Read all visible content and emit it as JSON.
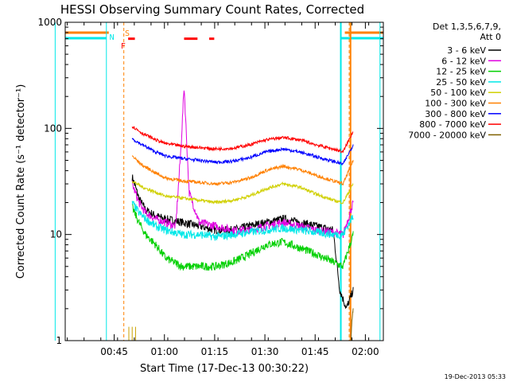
{
  "chart_data": {
    "type": "line",
    "title": "HESSI Observing Summary Count Rates, Corrected",
    "xlabel": "Start Time (17-Dec-13 00:30:22)",
    "ylabel": "Corrected Count Rate (s⁻¹ detector⁻¹)",
    "yscale": "log",
    "ylim": [
      1,
      1000
    ],
    "xlim_minutes": [
      0,
      95
    ],
    "x_ticks": [
      "00:45",
      "01:00",
      "01:15",
      "01:30",
      "01:45",
      "02:00"
    ],
    "x_tick_minutes": [
      14.63,
      29.63,
      44.63,
      59.63,
      74.63,
      89.63
    ],
    "y_ticks": [
      "1",
      "10",
      "100",
      "1000"
    ],
    "y_tick_values": [
      1,
      10,
      100,
      1000
    ],
    "timestamp": "19-Dec-2013 05:33",
    "legend": {
      "header": [
        "Det 1,3,5,6,7,9,",
        "Att 0"
      ],
      "position": "right"
    },
    "flag_labels": [
      "S",
      "N",
      "F"
    ],
    "series": [
      {
        "name": "3 - 6 keV",
        "color": "#000000",
        "x": [
          20,
          22,
          24,
          27,
          30,
          35,
          40,
          45,
          50,
          55,
          60,
          65,
          70,
          75,
          80,
          82,
          84,
          86
        ],
        "y": [
          35,
          22,
          17,
          15,
          14,
          13,
          12,
          11,
          11,
          12,
          13,
          14,
          13,
          12,
          11,
          3,
          2,
          3
        ]
      },
      {
        "name": "6 - 12 keV",
        "color": "#e000e0",
        "x": [
          20,
          22,
          24,
          27,
          30,
          33,
          34.5,
          35.5,
          37,
          40,
          45,
          50,
          55,
          60,
          65,
          70,
          75,
          80,
          83,
          86
        ],
        "y": [
          30,
          20,
          16,
          14,
          13,
          12,
          60,
          250,
          25,
          13,
          12,
          11,
          11,
          12,
          13,
          12,
          11,
          10.5,
          10,
          20
        ]
      },
      {
        "name": "12 - 25 keV",
        "color": "#00d000",
        "x": [
          20,
          22,
          24,
          27,
          30,
          35,
          40,
          45,
          50,
          55,
          60,
          65,
          70,
          75,
          80,
          83,
          86
        ],
        "y": [
          18,
          13,
          10,
          8,
          6,
          5,
          5,
          5,
          5.5,
          6.5,
          8,
          8.5,
          7.5,
          6.5,
          5.5,
          5,
          10
        ]
      },
      {
        "name": "25 - 50 keV",
        "color": "#00e8e8",
        "x": [
          20,
          22,
          24,
          27,
          30,
          35,
          40,
          45,
          50,
          55,
          60,
          65,
          70,
          75,
          80,
          83,
          86
        ],
        "y": [
          20,
          16,
          14,
          12,
          11,
          10,
          10,
          9.5,
          10,
          10.5,
          11,
          11.5,
          11,
          10.5,
          10,
          10,
          15
        ]
      },
      {
        "name": "50 - 100 keV",
        "color": "#d0d000",
        "x": [
          20,
          23,
          27,
          30,
          35,
          40,
          45,
          50,
          55,
          60,
          65,
          70,
          75,
          80,
          83,
          86
        ],
        "y": [
          32,
          28,
          25,
          23,
          22,
          21,
          20,
          21,
          23,
          27,
          30,
          28,
          24,
          21,
          20,
          30
        ]
      },
      {
        "name": "100 - 300 keV",
        "color": "#ff8000",
        "x": [
          20,
          23,
          27,
          30,
          35,
          40,
          45,
          50,
          55,
          60,
          65,
          70,
          75,
          80,
          83,
          86
        ],
        "y": [
          55,
          45,
          38,
          34,
          32,
          31,
          30,
          31,
          34,
          40,
          44,
          41,
          36,
          32,
          30,
          50
        ]
      },
      {
        "name": "300 - 800 keV",
        "color": "#0000ff",
        "x": [
          20,
          23,
          27,
          30,
          35,
          40,
          45,
          50,
          55,
          60,
          65,
          70,
          75,
          80,
          83,
          86
        ],
        "y": [
          80,
          70,
          60,
          55,
          52,
          50,
          48,
          49,
          53,
          60,
          64,
          60,
          54,
          49,
          46,
          70
        ]
      },
      {
        "name": "800 - 7000 keV",
        "color": "#ff0000",
        "x": [
          20,
          23,
          27,
          30,
          35,
          40,
          45,
          50,
          55,
          60,
          65,
          70,
          75,
          80,
          83,
          86
        ],
        "y": [
          105,
          90,
          78,
          72,
          68,
          66,
          64,
          65,
          70,
          78,
          82,
          78,
          70,
          64,
          60,
          95
        ]
      },
      {
        "name": "7000 - 20000 keV",
        "color": "#806000",
        "x": [
          85.3,
          85.6,
          86
        ],
        "y": [
          1,
          1.5,
          2
        ]
      }
    ],
    "overlays": {
      "saa_intervals_minutes": [
        [
          -5,
          13
        ],
        [
          83.5,
          95
        ]
      ],
      "night_intervals_minutes": [
        [
          -5,
          12.3
        ],
        [
          82.3,
          95
        ]
      ],
      "cyan_lines_minutes": [
        12.3,
        82.3,
        94
      ],
      "orange_lines_minutes": [
        17.5,
        84.8
      ],
      "red_bar_y_value": 700
    }
  }
}
